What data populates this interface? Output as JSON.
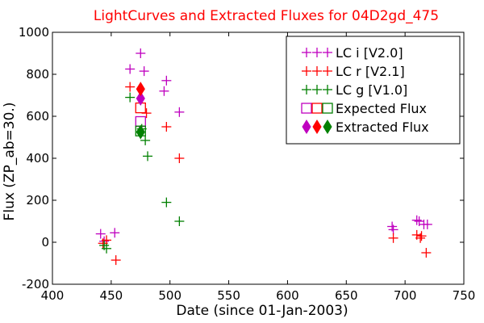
{
  "chart_data": {
    "type": "scatter",
    "title": "LightCurves and Extracted Fluxes for 04D2gd_475",
    "xlabel": "Date (since 01-Jan-2003)",
    "ylabel": "Flux (ZP_ab=30.)",
    "xlim": [
      400,
      750
    ],
    "ylim": [
      -200,
      1000
    ],
    "xticks": [
      400,
      450,
      500,
      550,
      600,
      650,
      700,
      750
    ],
    "yticks": [
      -200,
      0,
      200,
      400,
      600,
      800,
      1000
    ],
    "grid": false,
    "legend_position": "upper right",
    "series": [
      {
        "name": "LC i [V2.0]",
        "marker": "plus",
        "color": "#bf00bf",
        "points": [
          [
            441,
            40
          ],
          [
            444,
            5
          ],
          [
            453,
            45
          ],
          [
            466,
            825
          ],
          [
            475,
            900
          ],
          [
            478,
            815
          ],
          [
            495,
            720
          ],
          [
            497,
            770
          ],
          [
            508,
            620
          ],
          [
            689,
            75
          ],
          [
            690,
            60
          ],
          [
            710,
            105
          ],
          [
            712,
            100
          ],
          [
            716,
            85
          ],
          [
            719,
            85
          ]
        ]
      },
      {
        "name": "LC r [V2.1]",
        "marker": "plus",
        "color": "#ff0000",
        "points": [
          [
            443,
            -5
          ],
          [
            446,
            10
          ],
          [
            454,
            -85
          ],
          [
            466,
            740
          ],
          [
            480,
            615
          ],
          [
            497,
            550
          ],
          [
            508,
            400
          ],
          [
            690,
            20
          ],
          [
            710,
            35
          ],
          [
            713,
            20
          ],
          [
            714,
            30
          ],
          [
            718,
            -50
          ]
        ]
      },
      {
        "name": "LC g [V1.0]",
        "marker": "plus",
        "color": "#008000",
        "points": [
          [
            444,
            -15
          ],
          [
            446,
            -30
          ],
          [
            466,
            690
          ],
          [
            476,
            540
          ],
          [
            479,
            485
          ],
          [
            481,
            410
          ],
          [
            497,
            190
          ],
          [
            508,
            100
          ]
        ]
      },
      {
        "name": "Expected Flux",
        "marker": "square-open",
        "colors": [
          "#bf00bf",
          "#ff0000",
          "#008000"
        ],
        "points": [
          [
            475,
            575
          ],
          [
            475,
            640
          ],
          [
            475,
            530
          ]
        ]
      },
      {
        "name": "Extracted Flux",
        "marker": "diamond-filled",
        "colors": [
          "#bf00bf",
          "#ff0000",
          "#008000"
        ],
        "points": [
          [
            475,
            685
          ],
          [
            475,
            730
          ],
          [
            475,
            525
          ]
        ]
      }
    ]
  }
}
